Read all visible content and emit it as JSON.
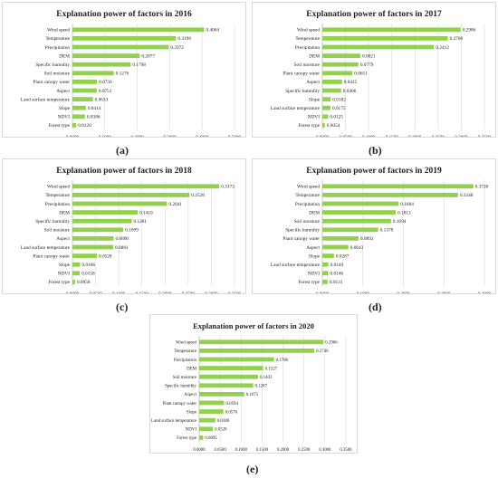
{
  "captions": [
    "(a)",
    "(b)",
    "(c)",
    "(d)",
    "(e)"
  ],
  "style": {
    "bar_color": "#92d050",
    "grid_color": "#d9d9d9",
    "text_color": "#222222"
  },
  "chart_data": [
    {
      "type": "bar",
      "orientation": "horizontal",
      "title": "Explanation power of  factors in 2016",
      "categories": [
        "Wind speed",
        "Temperature",
        "Precipitation",
        "DEM",
        "Specific humidity",
        "Soil moisture",
        "Plant canopy water",
        "Aspect",
        "Land surface temperature",
        "Slope",
        "NDVI",
        "Forest type"
      ],
      "values": [
        0.4064,
        0.3196,
        0.2972,
        0.2077,
        0.1798,
        0.1276,
        0.0756,
        0.0751,
        0.0633,
        0.0414,
        0.0386,
        0.012
      ],
      "value_labels": [
        "0.4064",
        "0.3196",
        "0.2972",
        "0.2077",
        "0.1798",
        "0.1276",
        "0.0756",
        "0.0751",
        "0.0633",
        "0.0414",
        "0.0386",
        "0.0120"
      ],
      "xticks": [
        "0.0000",
        "0.1000",
        "0.2000",
        "0.3000",
        "0.4000",
        "0.5000"
      ],
      "xlim": [
        0,
        0.5
      ],
      "grid": true
    },
    {
      "type": "bar",
      "orientation": "horizontal",
      "title": "Explanation power of  factors in 2017",
      "categories": [
        "Wind speed",
        "Temperature",
        "Precipitation",
        "DEM",
        "Soil moisture",
        "Plant canopy water",
        "Aspect",
        "Specific humidity",
        "Slope",
        "Land surface temperature",
        "NDVI",
        "Forest type"
      ],
      "values": [
        0.2986,
        0.2708,
        0.2412,
        0.0821,
        0.0779,
        0.0651,
        0.0425,
        0.0406,
        0.0182,
        0.0175,
        0.0125,
        0.0054
      ],
      "value_labels": [
        "0.2986",
        "0.2708",
        "0.2412",
        "0.0821",
        "0.0779",
        "0.0651",
        "0.0425",
        "0.0406",
        "0.0182",
        "0.0175",
        "0.0125",
        "0.0054"
      ],
      "xticks": [
        "0.0000",
        "0.0500",
        "0.1000",
        "0.1500",
        "0.2000",
        "0.2500",
        "0.3000",
        "0.3500"
      ],
      "xlim": [
        0,
        0.35
      ],
      "grid": true
    },
    {
      "type": "bar",
      "orientation": "horizontal",
      "title": "Explanation power of  factors in 2018",
      "categories": [
        "Wind speed",
        "Temperature",
        "Precipitation",
        "DEM",
        "Specific humidity",
        "Soil moisture",
        "Aspect",
        "Land surface temperature",
        "Plant canopy water",
        "Slope",
        "NDVI",
        "Forest type"
      ],
      "values": [
        0.3173,
        0.2528,
        0.2041,
        0.141,
        0.1281,
        0.1099,
        0.089,
        0.0881,
        0.0528,
        0.0166,
        0.0158,
        0.0058
      ],
      "value_labels": [
        "0.3173",
        "0.2528",
        "0.2041",
        "0.1410",
        "0.1281",
        "0.1099",
        "0.0890",
        "0.0881",
        "0.0528",
        "0.0166",
        "0.0158",
        "0.0058"
      ],
      "xticks": [
        "0.0000",
        "0.0500",
        "0.1000",
        "0.1500",
        "0.2000",
        "0.2500",
        "0.3000",
        "0.3500"
      ],
      "xlim": [
        0,
        0.35
      ],
      "grid": true
    },
    {
      "type": "bar",
      "orientation": "horizontal",
      "title": "Explanation power of  factors in 2019",
      "categories": [
        "Wind speed",
        "Temperature",
        "Precipitation",
        "DEM",
        "Soil moisture",
        "Specific humidity",
        "Plant canopy water",
        "Aspect",
        "Slope",
        "Land surface temperature",
        "NDVI",
        "Forest type"
      ],
      "values": [
        0.3726,
        0.3348,
        0.1884,
        0.1813,
        0.1694,
        0.1378,
        0.0892,
        0.0643,
        0.0287,
        0.0149,
        0.0146,
        0.0131
      ],
      "value_labels": [
        "0.3726",
        "0.3348",
        "0.1884",
        "0.1813",
        "0.1694",
        "0.1378",
        "0.0892",
        "0.0643",
        "0.0287",
        "0.0149",
        "0.0146",
        "0.0131"
      ],
      "xticks": [
        "0.0000",
        "0.1000",
        "0.2000",
        "0.3000",
        "0.4000"
      ],
      "xlim": [
        0,
        0.4
      ],
      "grid": true
    },
    {
      "type": "bar",
      "orientation": "horizontal",
      "title": "Explanation power of  factors in 2020",
      "categories": [
        "Wind speed",
        "Temperature",
        "Precipitation",
        "DEM",
        "Soil moisture",
        "Specific humidity",
        "Aspect",
        "Plant canopy water",
        "Slope",
        "Land surface temperature",
        "NDVI",
        "Forest type"
      ],
      "values": [
        0.2966,
        0.2746,
        0.1786,
        0.1527,
        0.1403,
        0.1287,
        0.1075,
        0.0594,
        0.0576,
        0.0386,
        0.0328,
        0.0095
      ],
      "value_labels": [
        "0.2966",
        "0.2746",
        "0.1786",
        "0.1527",
        "0.1403",
        "0.1287",
        "0.1075",
        "0.0594",
        "0.0576",
        "0.0386",
        "0.0328",
        "0.0095"
      ],
      "xticks": [
        "0.0000",
        "0.0500",
        "0.1000",
        "0.1500",
        "0.2000",
        "0.2500",
        "0.3000",
        "0.3500"
      ],
      "xlim": [
        0,
        0.35
      ],
      "grid": true
    }
  ]
}
